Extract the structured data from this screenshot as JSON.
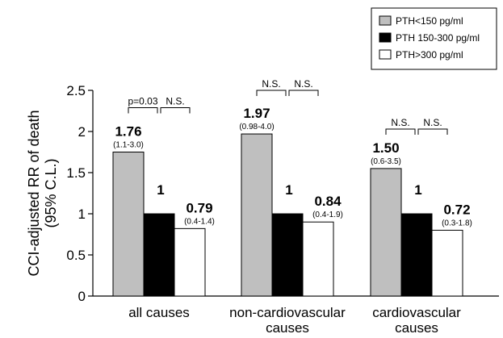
{
  "chart_data": {
    "type": "bar",
    "ylabel_lines": [
      "CCI-adjusted RR of death",
      "(95% C.L.)"
    ],
    "ylim": [
      0,
      2.5
    ],
    "yticks": [
      0,
      0.5,
      1,
      1.5,
      2,
      2.5
    ],
    "ytick_labels": [
      "0",
      "0.5",
      "1",
      "1.5",
      "2",
      "2.5"
    ],
    "groups": [
      {
        "name": "all causes",
        "label_lines": [
          "all causes"
        ]
      },
      {
        "name": "non-cardiovascular causes",
        "label_lines": [
          "non-cardiovascular",
          "causes"
        ]
      },
      {
        "name": "cardiovascular causes",
        "label_lines": [
          "cardiovascular",
          "causes"
        ]
      }
    ],
    "series": [
      {
        "name": "PTH<150 pg/ml",
        "color": "#bfbfbf",
        "values": [
          1.76,
          1.97,
          1.5
        ],
        "value_labels": [
          "1.76",
          "1.97",
          "1.50"
        ],
        "ci_labels": [
          "(1.1-3.0)",
          "(0.98-4.0)",
          "(0.6-3.5)"
        ],
        "bar_values": [
          1.75,
          1.97,
          1.55
        ]
      },
      {
        "name": "PTH 150-300 pg/ml",
        "color": "#000000",
        "values": [
          1,
          1,
          1
        ],
        "value_labels": [
          "1",
          "1",
          "1"
        ],
        "ci_labels": [
          "",
          "",
          ""
        ],
        "bar_values": [
          1,
          1,
          1
        ]
      },
      {
        "name": "PTH>300 pg/ml",
        "color": "#ffffff",
        "values": [
          0.79,
          0.84,
          0.72
        ],
        "value_labels": [
          "0.79",
          "0.84",
          "0.72"
        ],
        "ci_labels": [
          "(0.4-1.4)",
          "(0.4-1.9)",
          "(0.3-1.8)"
        ],
        "bar_values": [
          0.82,
          0.9,
          0.8
        ]
      }
    ],
    "comparisons": [
      [
        "p=0.03",
        "N.S."
      ],
      [
        "N.S.",
        "N.S."
      ],
      [
        "N.S.",
        "N.S."
      ]
    ],
    "legend": {
      "placement": "top-right"
    }
  }
}
